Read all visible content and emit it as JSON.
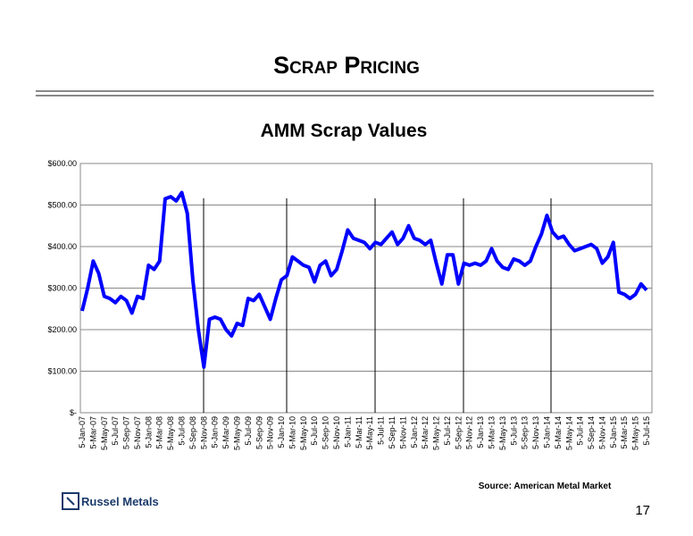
{
  "slide_title": "Scrap Pricing",
  "chart_data": {
    "type": "line",
    "title": "AMM Scrap Values",
    "categories": [
      "5-Jan-07",
      null,
      "5-Mar-07",
      null,
      "5-May-07",
      null,
      "5-Jul-07",
      null,
      "5-Sep-07",
      null,
      "5-Nov-07",
      null,
      "5-Jan-08",
      null,
      "5-Mar-08",
      null,
      "5-May-08",
      null,
      "5-Jul-08",
      null,
      "5-Sep-08",
      null,
      "5-Nov-08",
      null,
      "5-Jan-09",
      null,
      "5-Mar-09",
      null,
      "5-May-09",
      null,
      "5-Jul-09",
      null,
      "5-Sep-09",
      null,
      "5-Nov-09",
      null,
      "5-Jan-10",
      null,
      "5-Mar-10",
      null,
      "5-May-10",
      null,
      "5-Jul-10",
      null,
      "5-Sep-10",
      null,
      "5-Nov-10",
      null,
      "5-Jan-11",
      null,
      "5-Mar-11",
      null,
      "5-May-11",
      null,
      "5-Jul-11",
      null,
      "5-Sep-11",
      null,
      "5-Nov-11",
      null,
      "5-Jan-12",
      null,
      "5-Mar-12",
      null,
      "5-May-12",
      null,
      "5-Jul-12",
      null,
      "5-Sep-12",
      null,
      "5-Nov-12",
      null,
      "5-Jan-13",
      null,
      "5-Mar-13",
      null,
      "5-May-13",
      null,
      "5-Jul-13",
      null,
      "5-Sep-13",
      null,
      "5-Nov-13",
      null,
      "5-Jan-14",
      null,
      "5-Mar-14",
      null,
      "5-May-14",
      null,
      "5-Jul-14",
      null,
      "5-Sep-14",
      null,
      "5-Nov-14",
      null,
      "5-Jan-15",
      null,
      "5-Mar-15",
      null,
      "5-May-15",
      null,
      "5-Jul-15"
    ],
    "series": [
      {
        "color": "#0000ff",
        "values": [
          245,
          300,
          365,
          335,
          280,
          275,
          265,
          280,
          270,
          240,
          280,
          275,
          355,
          345,
          365,
          515,
          520,
          510,
          530,
          480,
          320,
          200,
          110,
          225,
          230,
          225,
          200,
          185,
          215,
          210,
          275,
          270,
          285,
          255,
          225,
          275,
          320,
          330,
          375,
          365,
          355,
          350,
          315,
          355,
          365,
          330,
          345,
          390,
          440,
          420,
          415,
          410,
          395,
          410,
          405,
          420,
          435,
          405,
          420,
          450,
          420,
          415,
          405,
          415,
          360,
          310,
          380,
          380,
          310,
          360,
          355,
          360,
          355,
          365,
          395,
          365,
          350,
          345,
          370,
          365,
          355,
          365,
          400,
          430,
          475,
          435,
          420,
          425,
          405,
          390,
          395,
          400,
          405,
          395,
          360,
          375,
          410,
          290,
          285,
          275,
          285,
          310,
          295
        ]
      }
    ],
    "ylim": [
      0,
      600
    ],
    "yticks": [
      {
        "value": 0,
        "label": "$-"
      },
      {
        "value": 100,
        "label": "$100.00"
      },
      {
        "value": 200,
        "label": "$200.00"
      },
      {
        "value": 300,
        "label": "$300.00"
      },
      {
        "value": 400,
        "label": "$400.00"
      },
      {
        "value": 500,
        "label": "$500.00"
      },
      {
        "value": 600,
        "label": "$600.00"
      }
    ],
    "grid": true
  },
  "source": "Source: American Metal Market",
  "logo": "Russel Metals",
  "page_number": "17"
}
